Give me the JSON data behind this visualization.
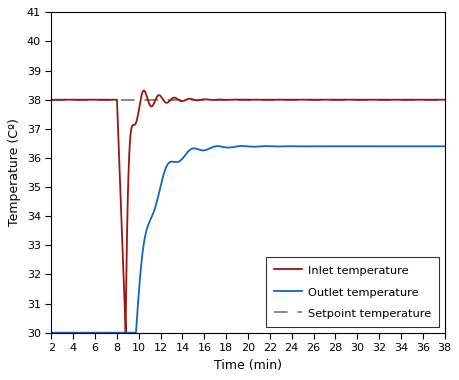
{
  "title": "",
  "xlabel": "Time (min)",
  "ylabel": "Temperature (Cº)",
  "xlim": [
    2,
    38
  ],
  "ylim": [
    30,
    41
  ],
  "xticks": [
    2,
    4,
    6,
    8,
    10,
    12,
    14,
    16,
    18,
    20,
    22,
    24,
    26,
    28,
    30,
    32,
    34,
    36,
    38
  ],
  "yticks": [
    30,
    31,
    32,
    33,
    34,
    35,
    36,
    37,
    38,
    39,
    40,
    41
  ],
  "setpoint": 38.0,
  "inlet_color": "#9b1515",
  "outlet_color": "#1565c0",
  "setpoint_color": "#888888",
  "legend_labels": [
    "Inlet temperature",
    "Outlet temperature",
    "Setpoint temperature"
  ],
  "figsize": [
    4.6,
    3.8
  ],
  "dpi": 100
}
